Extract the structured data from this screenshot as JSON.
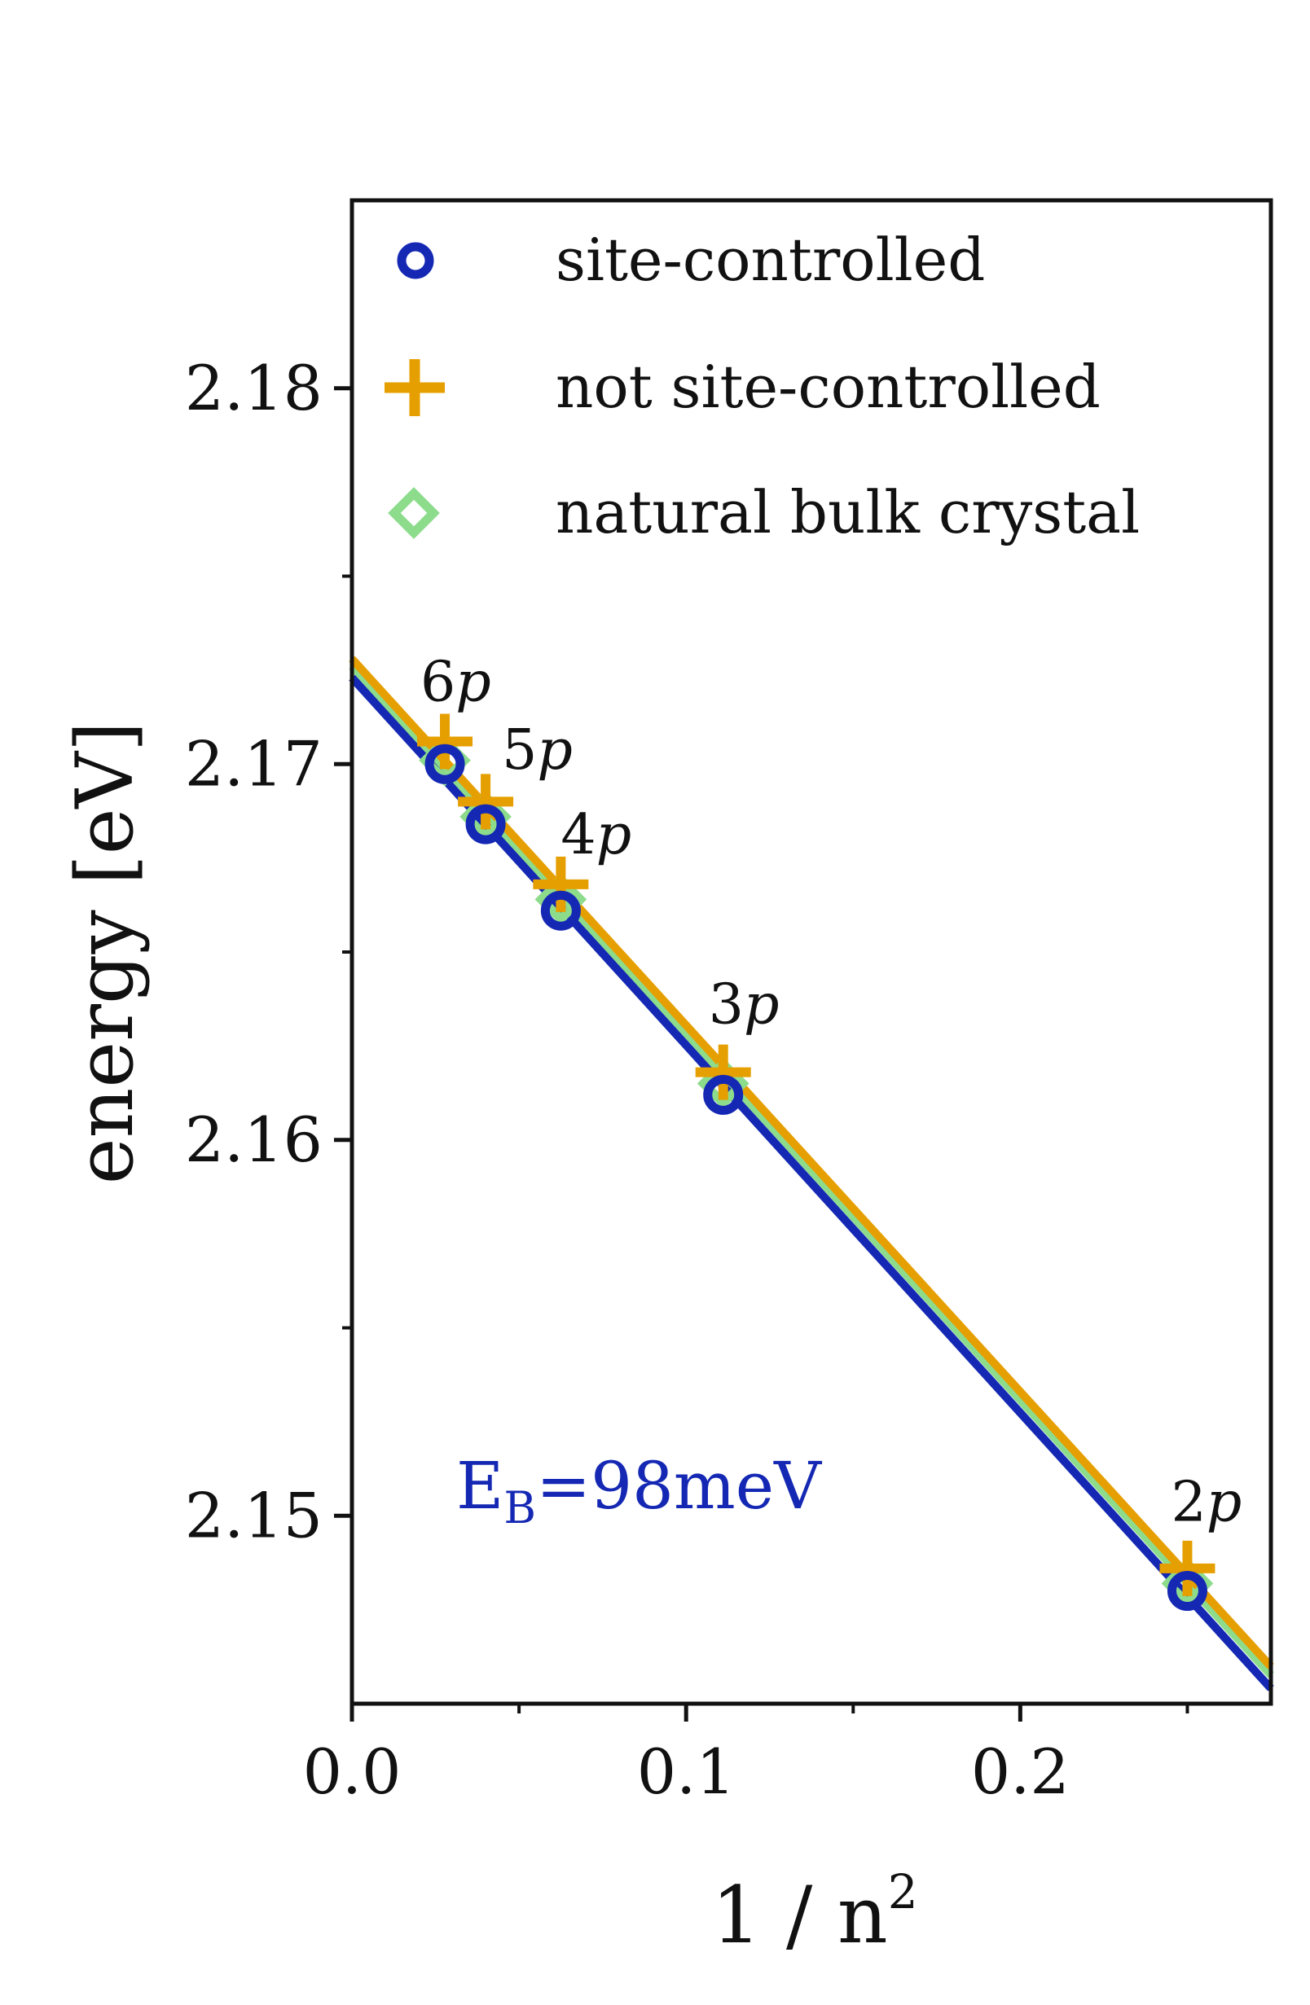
{
  "chart_data": {
    "type": "scatter",
    "title": "",
    "xlabel": "1 / n",
    "xlabel_exponent": "2",
    "ylabel": "energy [eV]",
    "xlim": [
      0.0,
      0.275
    ],
    "ylim": [
      2.145,
      2.185
    ],
    "x_ticks": [
      0.0,
      0.1,
      0.2
    ],
    "x_tick_labels": [
      "0.0",
      "0.1",
      "0.2"
    ],
    "y_ticks": [
      2.15,
      2.16,
      2.17,
      2.18
    ],
    "y_tick_labels": [
      "2.15",
      "2.16",
      "2.17",
      "2.18"
    ],
    "y_minor_ticks": [
      2.155,
      2.165,
      2.175
    ],
    "x_minor_ticks": [
      0.05,
      0.15,
      0.25
    ],
    "legend_position": "upper-left",
    "series": [
      {
        "name": "site-controlled",
        "marker": "circle",
        "color": "#1428b4",
        "points": [
          {
            "x": 0.0278,
            "y": 2.17
          },
          {
            "x": 0.04,
            "y": 2.1684
          },
          {
            "x": 0.0625,
            "y": 2.1661
          },
          {
            "x": 0.1111,
            "y": 2.1612
          },
          {
            "x": 0.25,
            "y": 2.148
          }
        ],
        "fit": {
          "intercept": 2.1723,
          "slope": -0.0978
        }
      },
      {
        "name": "not site-controlled",
        "marker": "plus",
        "color": "#e69f00",
        "points": [
          {
            "x": 0.0278,
            "y": 2.1706
          },
          {
            "x": 0.04,
            "y": 2.169
          },
          {
            "x": 0.0625,
            "y": 2.1668
          },
          {
            "x": 0.1111,
            "y": 2.1618
          },
          {
            "x": 0.25,
            "y": 2.1486
          }
        ],
        "fit": {
          "intercept": 2.1728,
          "slope": -0.0975
        }
      },
      {
        "name": "natural bulk crystal",
        "marker": "diamond",
        "color": "#8cdc8c",
        "points": [
          {
            "x": 0.0278,
            "y": 2.1701
          },
          {
            "x": 0.04,
            "y": 2.1686
          },
          {
            "x": 0.0625,
            "y": 2.1664
          },
          {
            "x": 0.1111,
            "y": 2.1615
          },
          {
            "x": 0.25,
            "y": 2.1482
          }
        ],
        "fit": {
          "intercept": 2.1726,
          "slope": -0.0976
        }
      }
    ],
    "point_labels": [
      {
        "num": "6",
        "sym": "p",
        "x": 0.0278,
        "y": 2.17
      },
      {
        "num": "5",
        "sym": "p",
        "x": 0.04,
        "y": 2.1684
      },
      {
        "num": "4",
        "sym": "p",
        "x": 0.0625,
        "y": 2.1661
      },
      {
        "num": "3",
        "sym": "p",
        "x": 0.1111,
        "y": 2.1612
      },
      {
        "num": "2",
        "sym": "p",
        "x": 0.25,
        "y": 2.148
      }
    ],
    "annotation": {
      "main": "E",
      "subscript": "B",
      "rest": "=98meV",
      "color": "#1428b4"
    }
  }
}
